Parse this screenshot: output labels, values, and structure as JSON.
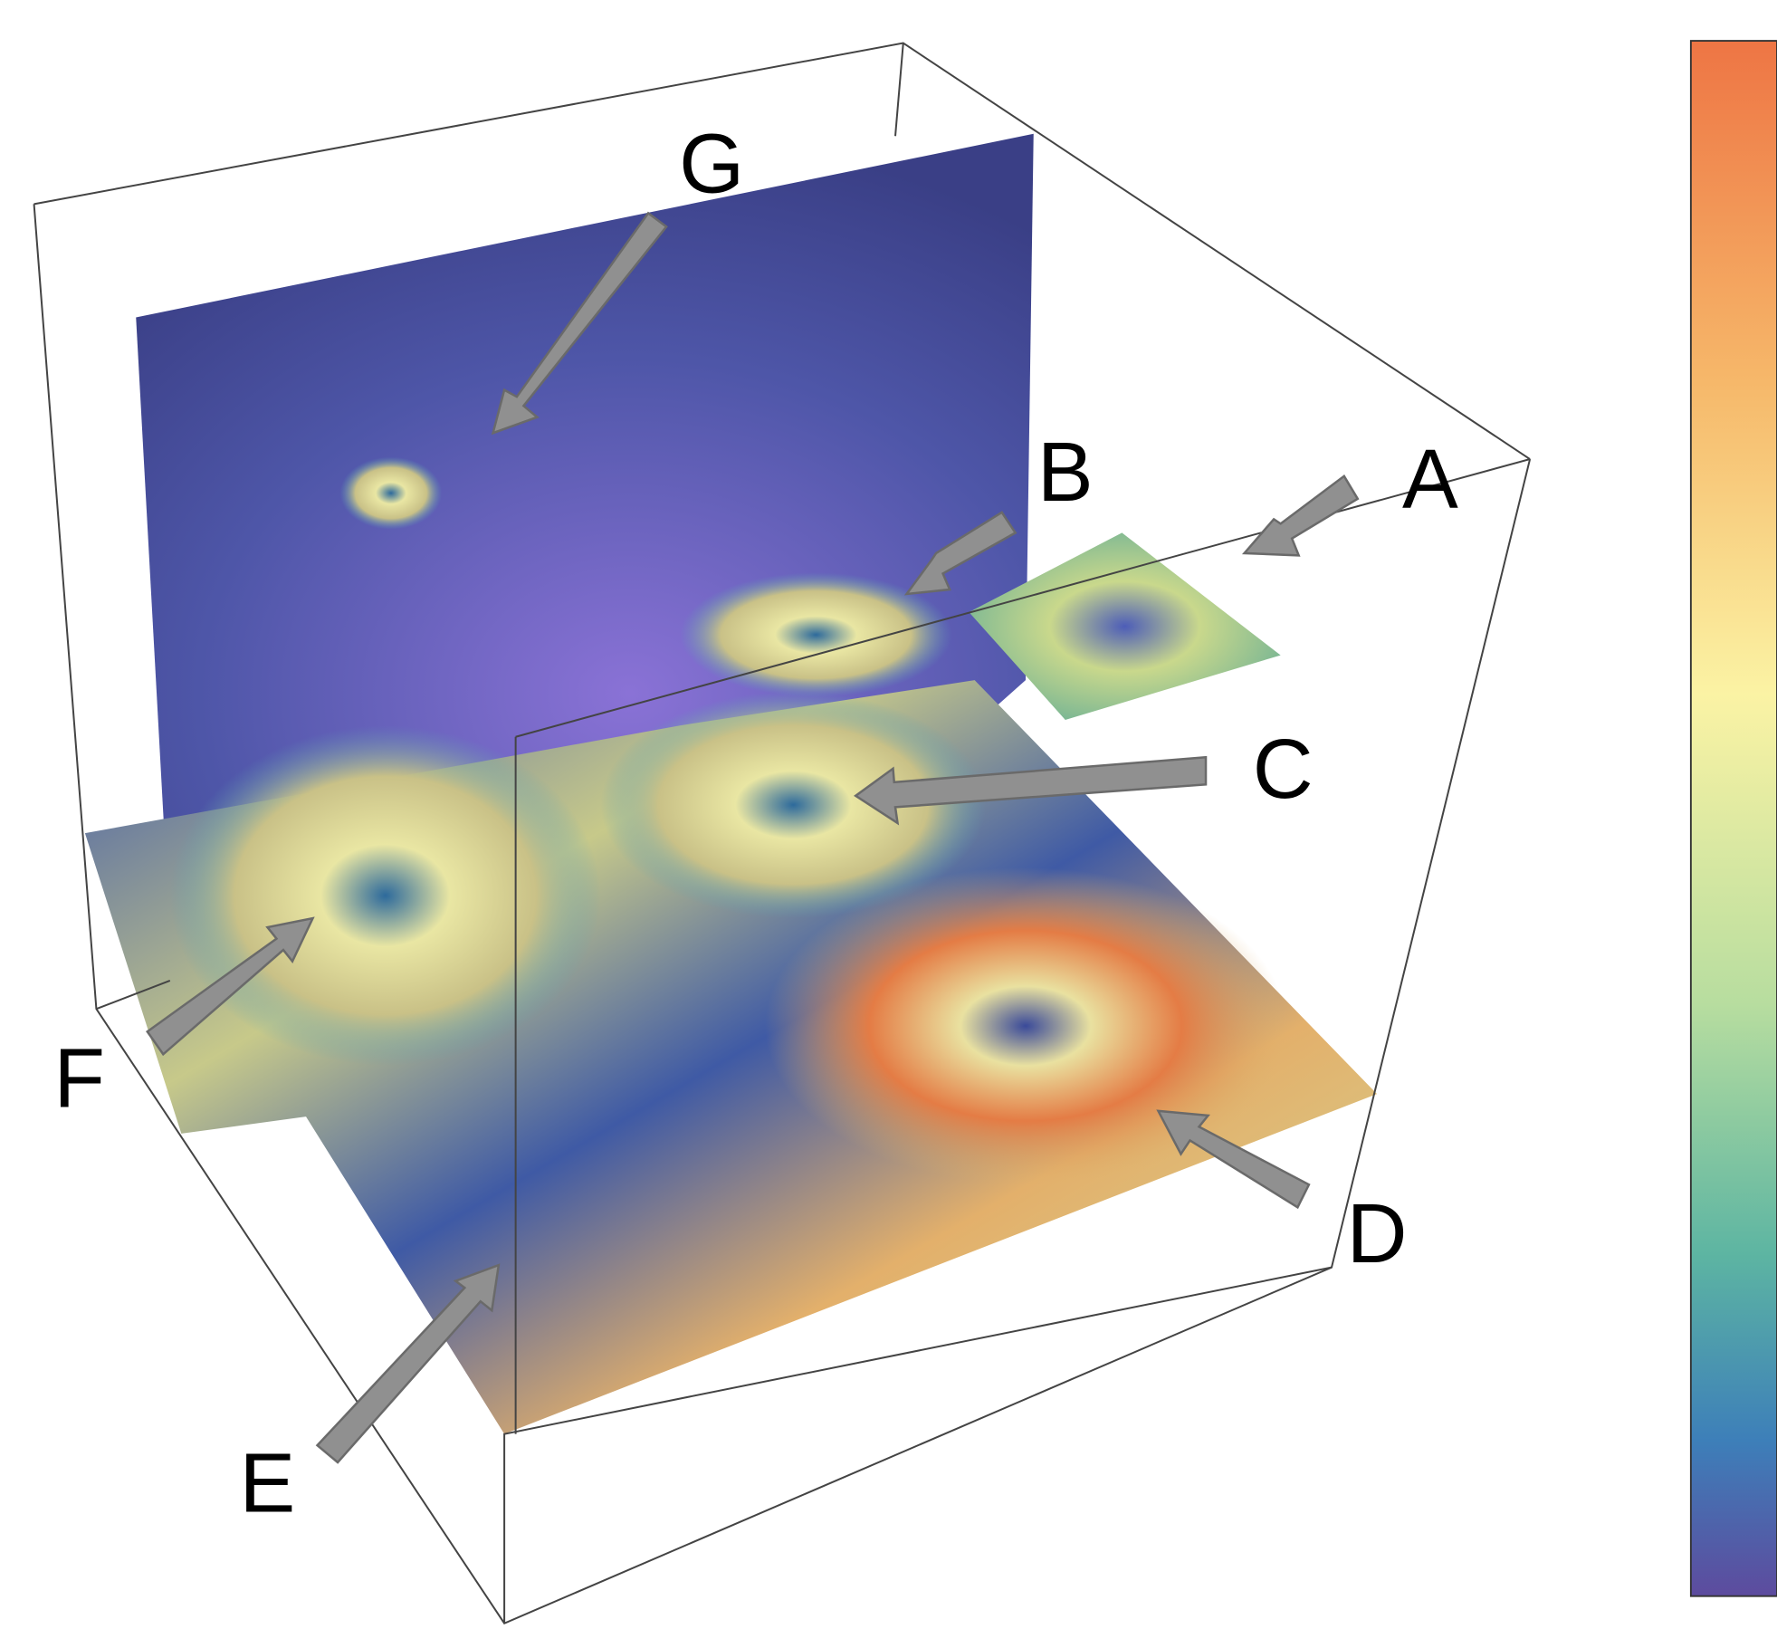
{
  "labels": [
    "G",
    "B",
    "A",
    "C",
    "D",
    "E",
    "F"
  ]
}
